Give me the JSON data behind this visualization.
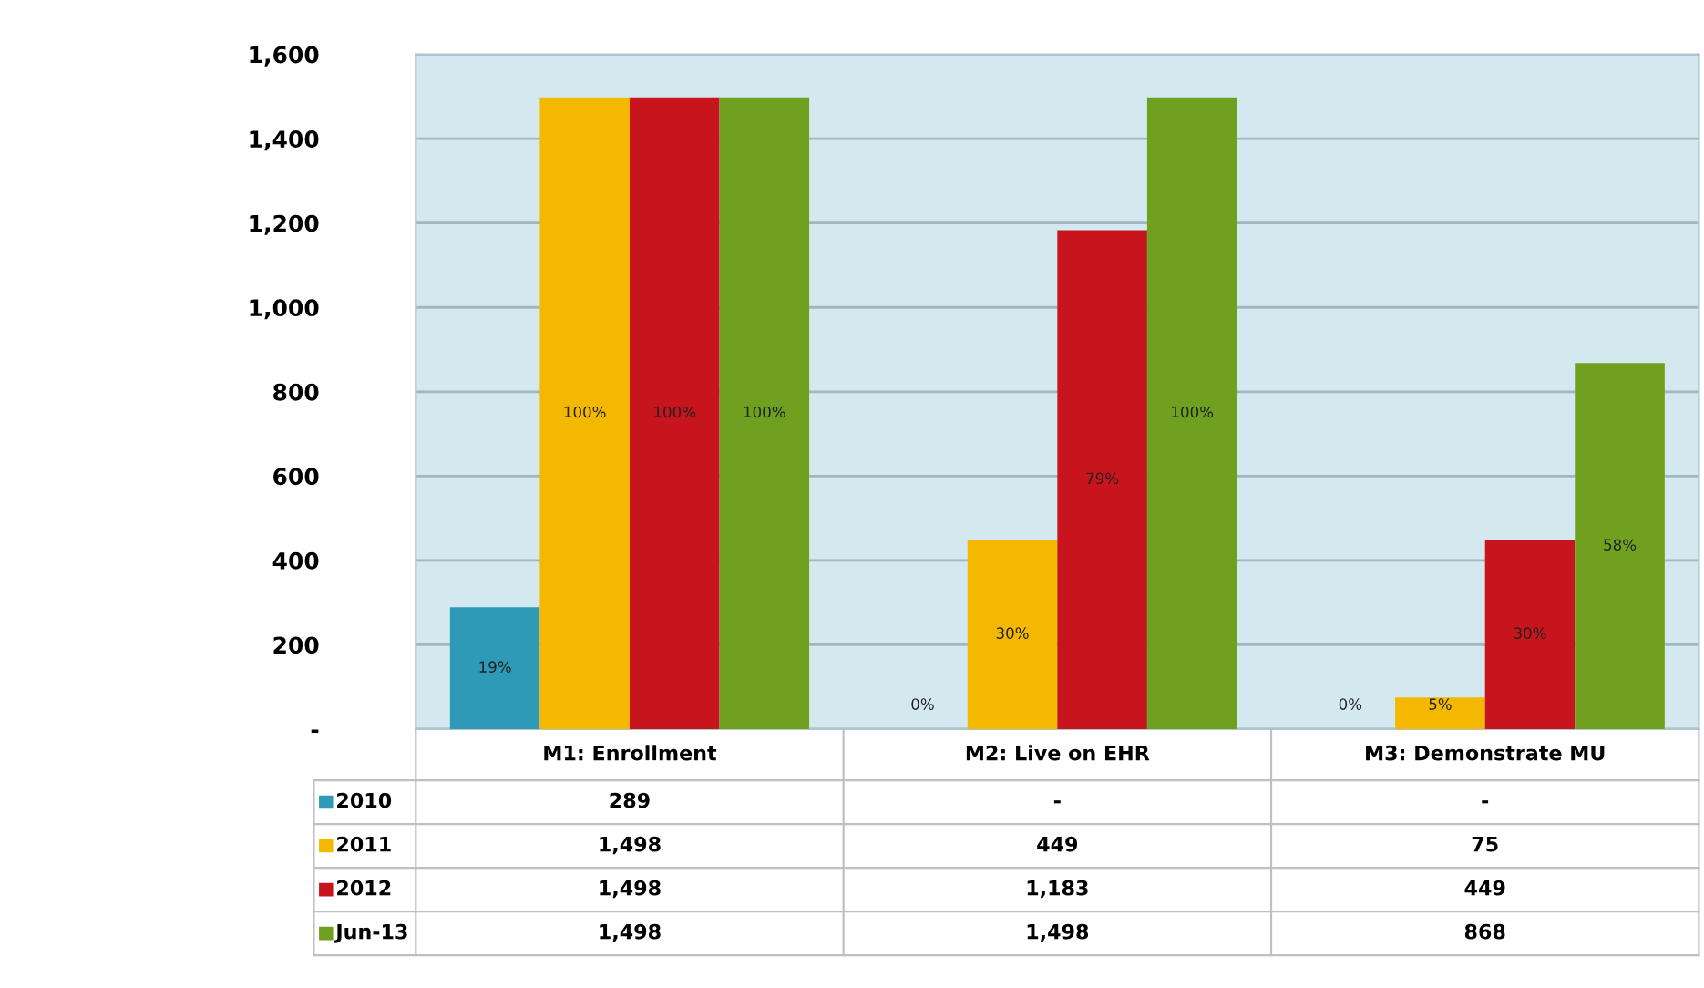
{
  "chart_data": {
    "type": "bar",
    "categories": [
      "M1: Enrollment",
      "M2: Live on EHR",
      "M3: Demonstrate MU"
    ],
    "series": [
      {
        "name": "2010",
        "color": "#2e9ab8",
        "values": [
          289,
          0,
          0
        ],
        "value_labels": [
          "289",
          "-",
          "-"
        ]
      },
      {
        "name": "2011",
        "color": "#f5b800",
        "values": [
          1498,
          449,
          75
        ],
        "value_labels": [
          "1,498",
          "449",
          "75"
        ]
      },
      {
        "name": "2012",
        "color": "#c8141c",
        "values": [
          1498,
          1183,
          449
        ],
        "value_labels": [
          "1,498",
          "1,183",
          "449"
        ]
      },
      {
        "name": "Jun-13",
        "color": "#6fa020",
        "values": [
          1498,
          1498,
          868
        ],
        "value_labels": [
          "1,498",
          "1,498",
          "868"
        ]
      }
    ],
    "annotations": [
      "19%",
      "0%",
      "0%",
      "100%",
      "30%",
      "5%",
      "100%",
      "79%",
      "30%",
      "100%",
      "100%",
      "58%"
    ],
    "ylim": [
      0,
      1600
    ],
    "yticks": [
      {
        "value": 0,
        "label": "-"
      },
      200,
      400,
      600,
      800,
      {
        "value": 1000,
        "label": "1,000"
      },
      {
        "value": 1200,
        "label": "1,200"
      },
      {
        "value": 1400,
        "label": "1,400"
      },
      {
        "value": 1600,
        "label": "1,600"
      }
    ],
    "grid": "y",
    "legend": "bottom left"
  }
}
